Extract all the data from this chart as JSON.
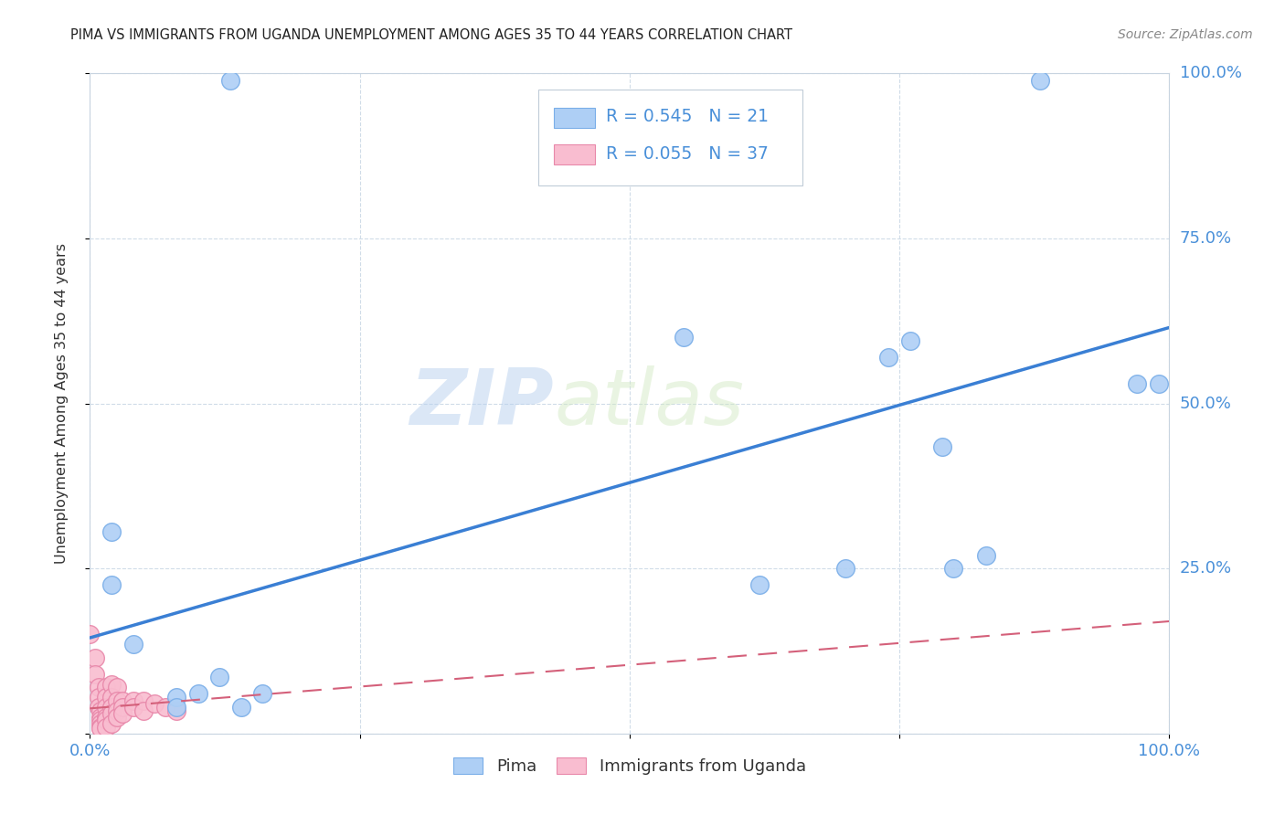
{
  "title": "PIMA VS IMMIGRANTS FROM UGANDA UNEMPLOYMENT AMONG AGES 35 TO 44 YEARS CORRELATION CHART",
  "source": "Source: ZipAtlas.com",
  "ylabel": "Unemployment Among Ages 35 to 44 years",
  "xlim": [
    0,
    1
  ],
  "ylim": [
    0,
    1
  ],
  "blue_label": "Pima",
  "pink_label": "Immigrants from Uganda",
  "blue_R": "0.545",
  "blue_N": "21",
  "pink_R": "0.055",
  "pink_N": "37",
  "blue_color": "#aecff5",
  "pink_color": "#f9bdd0",
  "blue_edge_color": "#7aaee8",
  "pink_edge_color": "#e888aa",
  "trend_blue_color": "#3a7fd4",
  "trend_pink_color": "#d4607a",
  "watermark_zip": "ZIP",
  "watermark_atlas": "atlas",
  "blue_trend_x": [
    0,
    1
  ],
  "blue_trend_y": [
    0.145,
    0.615
  ],
  "pink_trend_x": [
    0,
    1
  ],
  "pink_trend_y": [
    0.038,
    0.17
  ],
  "blue_points": [
    [
      0.02,
      0.305
    ],
    [
      0.02,
      0.225
    ],
    [
      0.04,
      0.135
    ],
    [
      0.08,
      0.055
    ],
    [
      0.08,
      0.04
    ],
    [
      0.1,
      0.06
    ],
    [
      0.12,
      0.085
    ],
    [
      0.13,
      0.99
    ],
    [
      0.14,
      0.04
    ],
    [
      0.16,
      0.06
    ],
    [
      0.55,
      0.6
    ],
    [
      0.62,
      0.225
    ],
    [
      0.7,
      0.25
    ],
    [
      0.74,
      0.57
    ],
    [
      0.76,
      0.595
    ],
    [
      0.79,
      0.435
    ],
    [
      0.8,
      0.25
    ],
    [
      0.83,
      0.27
    ],
    [
      0.88,
      0.99
    ],
    [
      0.97,
      0.53
    ],
    [
      0.99,
      0.53
    ]
  ],
  "pink_points": [
    [
      0.0,
      0.15
    ],
    [
      0.005,
      0.115
    ],
    [
      0.005,
      0.09
    ],
    [
      0.008,
      0.07
    ],
    [
      0.008,
      0.055
    ],
    [
      0.008,
      0.04
    ],
    [
      0.01,
      0.035
    ],
    [
      0.01,
      0.025
    ],
    [
      0.01,
      0.02
    ],
    [
      0.01,
      0.015
    ],
    [
      0.01,
      0.01
    ],
    [
      0.01,
      0.008
    ],
    [
      0.015,
      0.07
    ],
    [
      0.015,
      0.055
    ],
    [
      0.015,
      0.04
    ],
    [
      0.015,
      0.025
    ],
    [
      0.015,
      0.02
    ],
    [
      0.015,
      0.01
    ],
    [
      0.02,
      0.075
    ],
    [
      0.02,
      0.055
    ],
    [
      0.02,
      0.04
    ],
    [
      0.02,
      0.03
    ],
    [
      0.02,
      0.015
    ],
    [
      0.025,
      0.07
    ],
    [
      0.025,
      0.05
    ],
    [
      0.025,
      0.035
    ],
    [
      0.025,
      0.025
    ],
    [
      0.03,
      0.05
    ],
    [
      0.03,
      0.04
    ],
    [
      0.03,
      0.03
    ],
    [
      0.04,
      0.05
    ],
    [
      0.04,
      0.04
    ],
    [
      0.05,
      0.05
    ],
    [
      0.05,
      0.035
    ],
    [
      0.06,
      0.045
    ],
    [
      0.07,
      0.04
    ],
    [
      0.08,
      0.035
    ]
  ],
  "grid_color": "#d0dce8",
  "spine_color": "#c8d4e0",
  "tick_label_color": "#4a90d9",
  "title_color": "#222222",
  "source_color": "#888888",
  "ylabel_color": "#333333"
}
